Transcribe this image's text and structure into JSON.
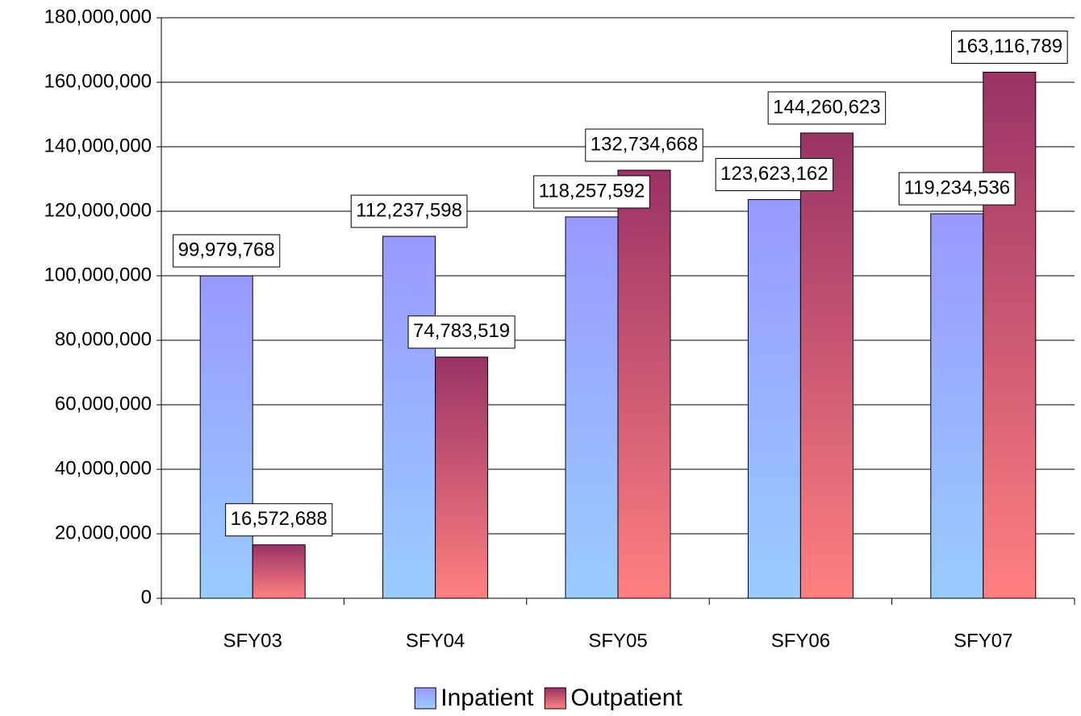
{
  "chart_data": {
    "type": "bar",
    "categories": [
      "SFY03",
      "SFY04",
      "SFY05",
      "SFY06",
      "SFY07"
    ],
    "series": [
      {
        "name": "Inpatient",
        "color": "#9999ff",
        "color_bottom": "#99ccff",
        "values": [
          99979768,
          112237598,
          118257592,
          123623162,
          119234536
        ],
        "value_labels": [
          "99,979,768",
          "112,237,598",
          "118,257,592",
          "123,623,162",
          "119,234,536"
        ]
      },
      {
        "name": "Outpatient",
        "color": "#993366",
        "color_bottom": "#ff8080",
        "values": [
          16572688,
          74783519,
          132734668,
          144260623,
          163116789
        ],
        "value_labels": [
          "16,572,688",
          "74,783,519",
          "132,734,668",
          "144,260,623",
          "163,116,789"
        ]
      }
    ],
    "ylim": [
      0,
      180000000
    ],
    "yticks": [
      0,
      {
        "value": 20000000,
        "label": "20,000,000"
      },
      {
        "value": 40000000,
        "label": "40,000,000"
      },
      {
        "value": 60000000,
        "label": "60,000,000"
      },
      {
        "value": 80000000,
        "label": "80,000,000"
      },
      {
        "value": 100000000,
        "label": "100,000,000"
      },
      {
        "value": 120000000,
        "label": "120,000,000"
      },
      {
        "value": 140000000,
        "label": "140,000,000"
      },
      {
        "value": 160000000,
        "label": "160,000,000"
      },
      {
        "value": 180000000,
        "label": "180,000,000"
      }
    ],
    "grid": true,
    "legend": "bottom"
  }
}
